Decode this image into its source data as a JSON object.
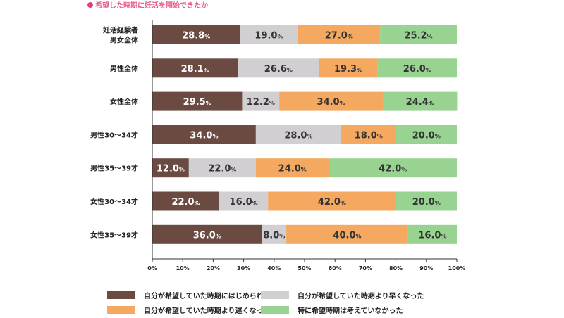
{
  "title": "希望した時期に妊活を開始できたか",
  "colors": {
    "title": "#e85a8a",
    "earlier": "#6b4a42",
    "later": "#f4a860",
    "as_hoped": "#d1cfd2",
    "not_considered": "#98d392",
    "axis": "#333333"
  },
  "legend": [
    {
      "label": "自分が希望していた時期にはじめられた",
      "color_key": "earlier"
    },
    {
      "label": "自分が希望していた時期より早くなった",
      "color_key": "as_hoped"
    },
    {
      "label": "自分が希望していた時期より遅くなった",
      "color_key": "later"
    },
    {
      "label": "特に希望時期は考えていなかった",
      "color_key": "not_considered"
    }
  ],
  "chart_data": {
    "type": "bar",
    "orientation": "horizontal",
    "stacked": true,
    "categories": [
      "妊活経験者\n男女全体",
      "男性全体",
      "女性全体",
      "男性30〜34才",
      "男性35〜39才",
      "女性30〜34才",
      "女性35〜39才"
    ],
    "series": [
      {
        "name": "自分が希望していた時期にはじめられた",
        "values": [
          28.8,
          28.1,
          29.5,
          34.0,
          12.0,
          22.0,
          36.0
        ]
      },
      {
        "name": "自分が希望していた時期より早くなった",
        "values": [
          19.0,
          26.6,
          12.2,
          28.0,
          22.0,
          16.0,
          8.0
        ]
      },
      {
        "name": "自分が希望していた時期より遅くなった",
        "values": [
          27.0,
          19.3,
          34.0,
          18.0,
          24.0,
          42.0,
          40.0
        ]
      },
      {
        "name": "特に希望時期は考えていなかった",
        "values": [
          25.2,
          26.0,
          24.4,
          20.0,
          42.0,
          20.0,
          16.0
        ]
      }
    ],
    "value_suffix": "%",
    "xlim": [
      0,
      100
    ],
    "xticks": [
      "0%",
      "10%",
      "20%",
      "30%",
      "40%",
      "50%",
      "60%",
      "70%",
      "80%",
      "90%",
      "100%"
    ],
    "legend_position": "bottom",
    "grid": false
  }
}
